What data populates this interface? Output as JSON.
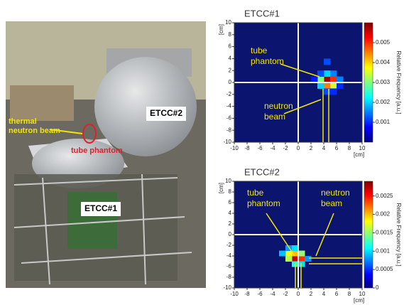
{
  "photo": {
    "beam_label": [
      "thermal",
      "neutron beam"
    ],
    "phantom_label": "tube phantom",
    "etcc2_label": "ETCC#2",
    "etcc1_label": "ETCC#1"
  },
  "chart_data": [
    {
      "type": "heatmap",
      "title": "ETCC#1",
      "xlabel": "[cm]",
      "ylabel": "[cm]",
      "xlim": [
        -10,
        10
      ],
      "ylim": [
        -10,
        10
      ],
      "xticks": [
        -10,
        -8,
        -6,
        -4,
        -2,
        0,
        2,
        4,
        6,
        8,
        10
      ],
      "yticks": [
        -10,
        -8,
        -6,
        -4,
        -2,
        0,
        2,
        4,
        6,
        8,
        10
      ],
      "x": [
        4.5,
        5.5,
        4.5,
        3.5,
        5.5,
        4.5,
        3.5,
        5.5,
        6.5,
        4.5,
        3.5,
        4.5,
        5.5,
        2.5,
        6.5
      ],
      "y": [
        0.5,
        0.5,
        -0.5,
        0.5,
        -0.5,
        1.5,
        -0.5,
        1.5,
        0.5,
        -1.5,
        1.5,
        3.5,
        -1.5,
        0.5,
        -0.5
      ],
      "values": [
        0.0058,
        0.005,
        0.0045,
        0.003,
        0.0035,
        0.002,
        0.002,
        0.0015,
        0.0015,
        0.0012,
        0.0012,
        0.0012,
        0.001,
        0.0009,
        0.001
      ],
      "colorbar_label": "Relative Frequency [a.u.]",
      "clim": [
        0,
        0.006
      ],
      "cticks": [
        0.001,
        0.002,
        0.003,
        0.004,
        0.005
      ],
      "annotations": [
        [
          "tube",
          "phantom"
        ],
        [
          "neutron",
          "beam"
        ]
      ]
    },
    {
      "type": "heatmap",
      "title": "ETCC#2",
      "xlabel": "[cm]",
      "ylabel": "[cm]",
      "xlim": [
        -10,
        10
      ],
      "ylim": [
        -10,
        10
      ],
      "xticks": [
        -10,
        -8,
        -6,
        -4,
        -2,
        0,
        2,
        4,
        6,
        8,
        10
      ],
      "yticks": [
        -10,
        -8,
        -6,
        -4,
        -2,
        0,
        2,
        4,
        6,
        8,
        10
      ],
      "x": [
        -0.5,
        0.5,
        -0.5,
        -1.5,
        0.5,
        -1.5,
        -0.5,
        0.5,
        -2.5,
        1.5,
        -1.5,
        -0.5
      ],
      "y": [
        -4.5,
        -4.5,
        -3.5,
        -3.5,
        -3.5,
        -4.5,
        -5.5,
        -5.5,
        -3.5,
        -4.5,
        -2.5,
        -2.5
      ],
      "values": [
        0.0027,
        0.0024,
        0.002,
        0.0018,
        0.0015,
        0.0016,
        0.0012,
        0.001,
        0.0009,
        0.0008,
        0.0008,
        0.001
      ],
      "colorbar_label": "Relative Frequency [a.u.]",
      "clim": [
        0,
        0.0029
      ],
      "cticks": [
        0,
        0.0005,
        0.001,
        0.0015,
        0.002,
        0.0025
      ],
      "annotations": [
        [
          "tube",
          "phantom"
        ],
        [
          "neutron",
          "beam"
        ]
      ]
    }
  ]
}
